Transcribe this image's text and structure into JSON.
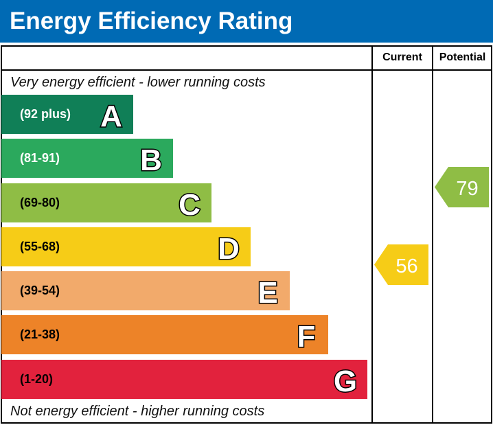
{
  "title": "Energy Efficiency Rating",
  "columns": {
    "current": "Current",
    "potential": "Potential"
  },
  "top_note": "Very energy efficient - lower running costs",
  "bottom_note": "Not energy efficient - higher running costs",
  "chart_data": {
    "type": "bar",
    "bands": [
      {
        "letter": "A",
        "range": "(92 plus)",
        "color": "#107f57",
        "text_color": "#ffffff"
      },
      {
        "letter": "B",
        "range": "(81-91)",
        "color": "#2ba95d",
        "text_color": "#ffffff"
      },
      {
        "letter": "C",
        "range": "(69-80)",
        "color": "#8fbd45",
        "text_color": "#000000"
      },
      {
        "letter": "D",
        "range": "(55-68)",
        "color": "#f6cc17",
        "text_color": "#000000"
      },
      {
        "letter": "E",
        "range": "(39-54)",
        "color": "#f2aa6b",
        "text_color": "#000000"
      },
      {
        "letter": "F",
        "range": "(21-38)",
        "color": "#ed8328",
        "text_color": "#000000"
      },
      {
        "letter": "G",
        "range": "(1-20)",
        "color": "#e2223d",
        "text_color": "#000000"
      }
    ],
    "current": {
      "value": "56",
      "band": "D",
      "color": "#f6cc17"
    },
    "potential": {
      "value": "79",
      "band": "C",
      "color": "#8fbd45"
    }
  }
}
